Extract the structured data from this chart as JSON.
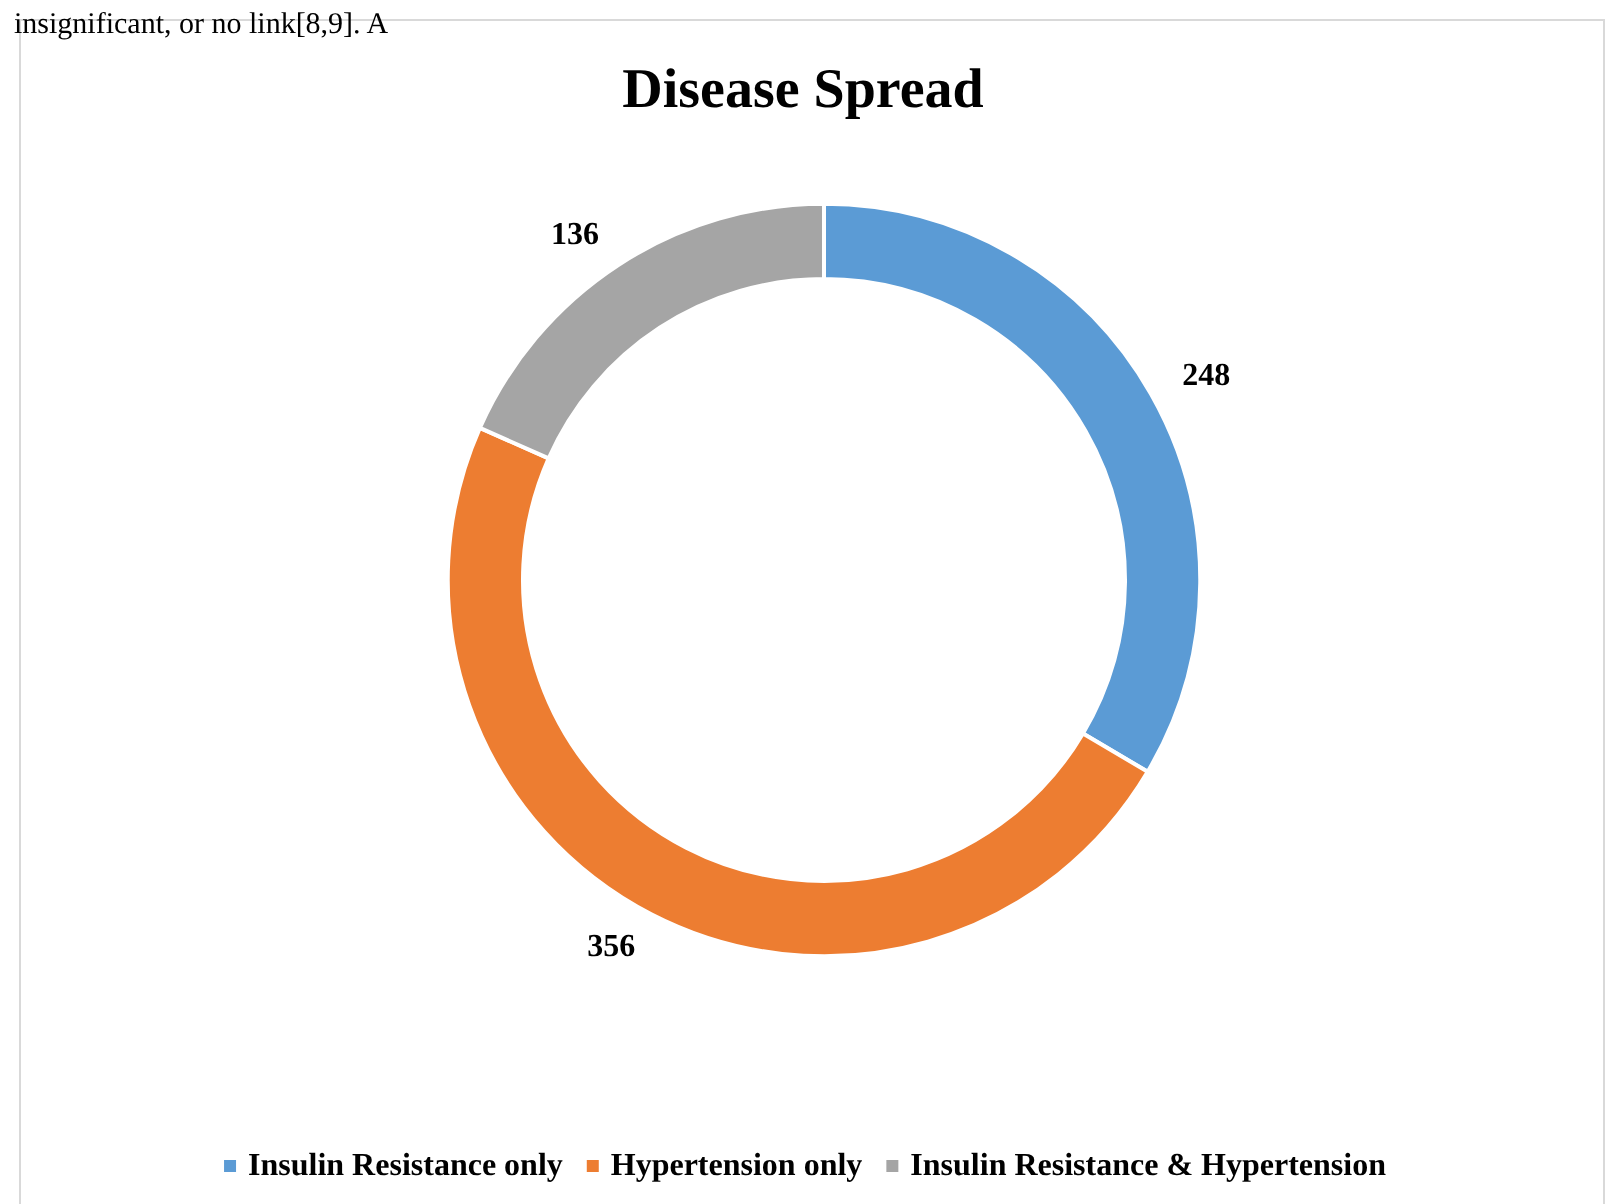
{
  "chart_data": {
    "type": "donut",
    "title": "Disease Spread",
    "categories": [
      "Insulin Resistance only",
      "Hypertension only",
      "Insulin Resistance & Hypertension"
    ],
    "values": [
      248,
      356,
      136
    ],
    "colors": [
      "#5b9bd5",
      "#ed7d31",
      "#a5a5a5"
    ],
    "data_labels": true,
    "legend": "bottom",
    "annotations": [
      "insignificant, or no link[8,9]. A"
    ]
  }
}
